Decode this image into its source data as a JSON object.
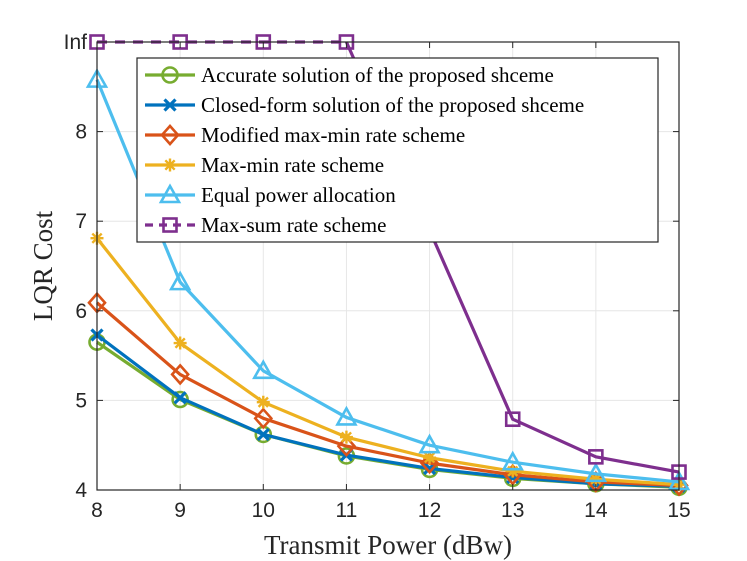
{
  "chart_data": {
    "type": "line",
    "xlabel": "Transmit Power (dBw)",
    "ylabel": "LQR Cost",
    "x": [
      8,
      9,
      10,
      11,
      12,
      13,
      14,
      15
    ],
    "xlim": [
      8,
      15
    ],
    "ylim": [
      4,
      9
    ],
    "xticks": [
      "8",
      "9",
      "10",
      "11",
      "12",
      "13",
      "14",
      "15"
    ],
    "yticks": [
      {
        "value": 4,
        "label": "4"
      },
      {
        "value": 5,
        "label": "5"
      },
      {
        "value": 6,
        "label": "6"
      },
      {
        "value": 7,
        "label": "7"
      },
      {
        "value": 8,
        "label": "8"
      },
      {
        "value": 9,
        "label": "Inf"
      }
    ],
    "grid": true,
    "legend_position": "top-right",
    "series": [
      {
        "name": "Accurate solution of the proposed shceme",
        "color": "#77AC30",
        "marker": "circle",
        "dash": false,
        "values": [
          5.65,
          5.01,
          4.62,
          4.38,
          4.23,
          4.13,
          4.07,
          4.03
        ]
      },
      {
        "name": "Closed-form solution of the proposed shceme",
        "color": "#0072BD",
        "marker": "x",
        "dash": false,
        "values": [
          5.73,
          5.03,
          4.62,
          4.39,
          4.24,
          4.14,
          4.07,
          4.04
        ]
      },
      {
        "name": "Modified max-min rate scheme",
        "color": "#D95319",
        "marker": "diamond",
        "dash": false,
        "values": [
          6.09,
          5.29,
          4.8,
          4.49,
          4.3,
          4.17,
          4.09,
          4.05
        ]
      },
      {
        "name": "Max-min rate scheme",
        "color": "#EDB120",
        "marker": "asterisk",
        "dash": false,
        "values": [
          6.81,
          5.64,
          4.98,
          4.59,
          4.36,
          4.21,
          4.12,
          4.06
        ]
      },
      {
        "name": "Equal power allocation",
        "color": "#4DBEEE",
        "marker": "triangle",
        "dash": false,
        "values": [
          8.58,
          6.32,
          5.33,
          4.81,
          4.5,
          4.31,
          4.18,
          4.09
        ]
      },
      {
        "name": "Max-sum rate scheme",
        "color": "#7E2F8E",
        "marker": "square",
        "dash": true,
        "dash_until": 11,
        "values": [
          9,
          9,
          9,
          9,
          6.9,
          4.79,
          4.37,
          4.2
        ]
      }
    ]
  }
}
